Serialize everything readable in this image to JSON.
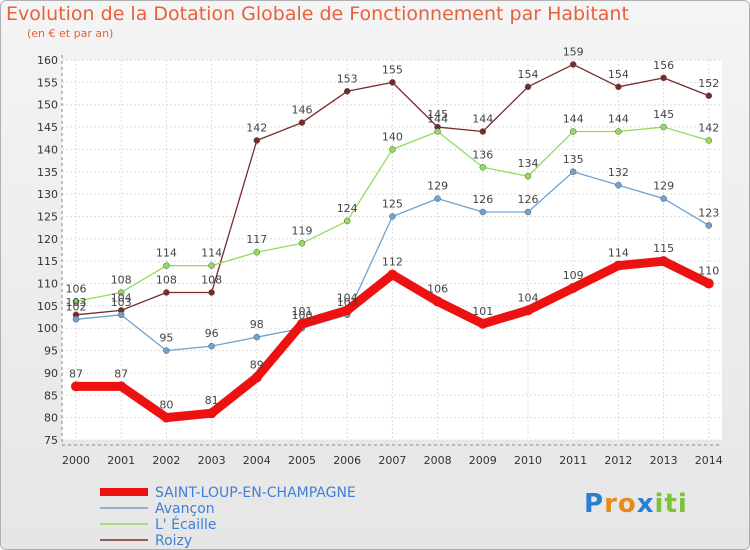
{
  "chart_data": {
    "type": "line",
    "title": "Evolution de la Dotation Globale de Fonctionnement par Habitant",
    "subtitle": "(en € et par an)",
    "xlabel": "",
    "ylabel": "",
    "x": [
      "2000",
      "2001",
      "2002",
      "2003",
      "2004",
      "2005",
      "2006",
      "2007",
      "2008",
      "2009",
      "2010",
      "2011",
      "2012",
      "2013",
      "2014"
    ],
    "ylim": [
      75,
      160
    ],
    "ytick_step": 5,
    "grid": true,
    "legend_position": "bottom-left",
    "series": [
      {
        "name": "Roizy",
        "color": "#7a2a2a",
        "values": [
          103,
          104,
          108,
          108,
          142,
          146,
          153,
          155,
          145,
          144,
          154,
          159,
          154,
          156,
          152
        ]
      },
      {
        "name": "L' Écaille",
        "color": "#90dd5c",
        "values": [
          106,
          108,
          114,
          114,
          117,
          119,
          124,
          140,
          144,
          136,
          134,
          144,
          144,
          145,
          142
        ]
      },
      {
        "name": "Avançon",
        "color": "#6fa3d3",
        "values": [
          102,
          103,
          95,
          96,
          98,
          100,
          103,
          125,
          129,
          126,
          126,
          135,
          132,
          129,
          123
        ]
      },
      {
        "name": "SAINT-LOUP-EN-CHAMPAGNE",
        "color": "#ee1111",
        "values": [
          87,
          87,
          80,
          81,
          89,
          101,
          104,
          112,
          106,
          101,
          104,
          109,
          114,
          115,
          110
        ]
      }
    ]
  },
  "legend": {
    "items": [
      "SAINT-LOUP-EN-CHAMPAGNE",
      "Avançon",
      "L' Écaille",
      "Roizy"
    ]
  },
  "logo": {
    "letters": [
      "P",
      "r",
      "o",
      "x",
      "i",
      "ti"
    ]
  }
}
